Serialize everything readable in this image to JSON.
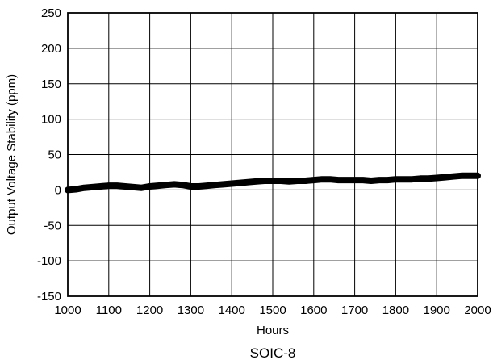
{
  "chart_data": {
    "type": "line",
    "title": "",
    "caption": "SOIC-8",
    "xlabel": "Hours",
    "ylabel": "Output Voltage Stability (ppm)",
    "xlim": [
      1000,
      2000
    ],
    "ylim": [
      -150,
      250
    ],
    "xticks": [
      1000,
      1100,
      1200,
      1300,
      1400,
      1500,
      1600,
      1700,
      1800,
      1900,
      2000
    ],
    "yticks": [
      -150,
      -100,
      -50,
      0,
      50,
      100,
      150,
      200,
      250
    ],
    "grid": true,
    "line_color": "#000000",
    "series": [
      {
        "x": [
          1000,
          1020,
          1040,
          1060,
          1080,
          1100,
          1120,
          1140,
          1160,
          1180,
          1200,
          1220,
          1240,
          1260,
          1280,
          1300,
          1320,
          1340,
          1360,
          1380,
          1400,
          1420,
          1440,
          1460,
          1480,
          1500,
          1520,
          1540,
          1560,
          1580,
          1600,
          1620,
          1640,
          1660,
          1680,
          1700,
          1720,
          1740,
          1760,
          1780,
          1800,
          1820,
          1840,
          1860,
          1880,
          1900,
          1920,
          1940,
          1960,
          1980,
          2000
        ],
        "values": [
          0,
          1,
          3,
          4,
          5,
          6,
          6,
          5,
          4,
          3,
          5,
          6,
          7,
          8,
          7,
          5,
          5,
          6,
          7,
          8,
          9,
          10,
          11,
          12,
          13,
          13,
          13,
          12,
          13,
          13,
          14,
          15,
          15,
          14,
          14,
          14,
          14,
          13,
          14,
          14,
          15,
          15,
          15,
          16,
          16,
          17,
          18,
          19,
          20,
          20,
          20
        ]
      }
    ]
  }
}
